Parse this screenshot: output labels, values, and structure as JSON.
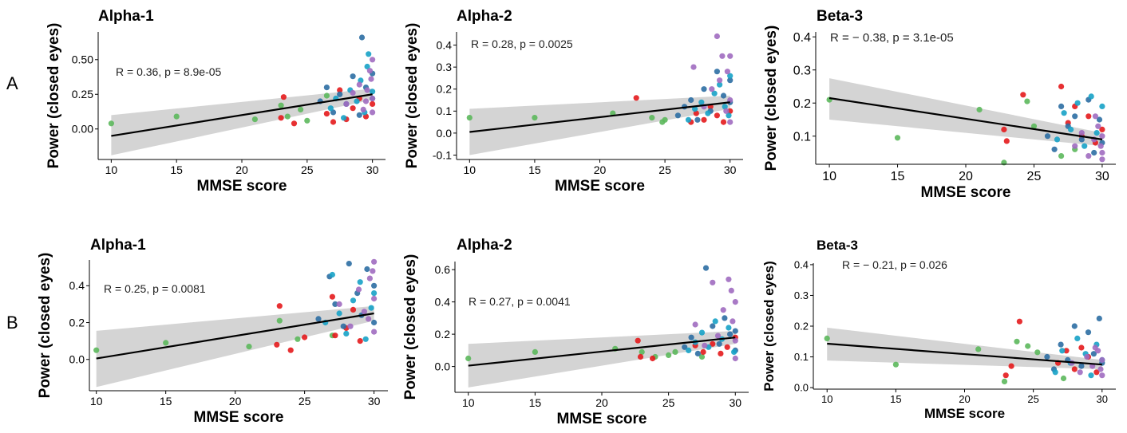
{
  "row_labels": [
    "A",
    "B"
  ],
  "colors": {
    "green": "#5cb85c",
    "red": "#e41a1c",
    "dark_blue": "#2c6ea3",
    "cyan": "#17a2c7",
    "purple": "#a06cc0",
    "band": "#cccccc",
    "line": "#000000"
  },
  "chart_data": [
    {
      "type": "scatter",
      "row": "A",
      "title": "Alpha-1",
      "xlabel": "MMSE score",
      "ylabel": "Power (closed eyes)",
      "xlim": [
        9,
        31
      ],
      "ylim": [
        -0.22,
        0.7
      ],
      "xticks": [
        "10",
        "15",
        "20",
        "25",
        "30"
      ],
      "yticks": [
        "0.00",
        "0.25",
        "0.50"
      ],
      "annotation_R": "R = 0.36, ",
      "annotation_p": "p = 8.9e-05",
      "fit": {
        "x": [
          10,
          30
        ],
        "y": [
          -0.05,
          0.25
        ]
      },
      "band_lower": [
        -0.19,
        0.21
      ],
      "band_upper": [
        0.1,
        0.29
      ],
      "series": [
        {
          "color": "green",
          "x": [
            10,
            15,
            21,
            23,
            23.5,
            24.5,
            25,
            26.5
          ],
          "y": [
            0.04,
            0.09,
            0.07,
            0.17,
            0.09,
            0.14,
            0.06,
            0.24
          ]
        },
        {
          "color": "red",
          "x": [
            23,
            23.2,
            24,
            26.5,
            27,
            27.5,
            28,
            28.5,
            29,
            29.5,
            30
          ],
          "y": [
            0.08,
            0.23,
            0.04,
            0.11,
            0.05,
            0.28,
            0.07,
            0.15,
            0.22,
            0.09,
            0.18
          ]
        },
        {
          "color": "dark_blue",
          "x": [
            26,
            26.5,
            27,
            27.5,
            28,
            28.5,
            29,
            29.2,
            29.5,
            30,
            30
          ],
          "y": [
            0.2,
            0.3,
            0.12,
            0.25,
            0.18,
            0.38,
            0.1,
            0.66,
            0.3,
            0.22,
            0.4
          ]
        },
        {
          "color": "cyan",
          "x": [
            26.8,
            27.2,
            27.8,
            28.3,
            28.8,
            29.1,
            29.4,
            29.7,
            30,
            29.6
          ],
          "y": [
            0.15,
            0.22,
            0.08,
            0.28,
            0.2,
            0.35,
            0.12,
            0.54,
            0.27,
            0.45
          ]
        },
        {
          "color": "purple",
          "x": [
            28,
            28.5,
            29,
            29.3,
            29.6,
            29.9,
            30,
            30,
            30,
            29.8,
            29.5
          ],
          "y": [
            0.18,
            0.26,
            0.32,
            0.14,
            0.28,
            0.36,
            0.22,
            0.5,
            0.12,
            0.42,
            0.2
          ]
        }
      ]
    },
    {
      "type": "scatter",
      "row": "A",
      "title": "Alpha-2",
      "xlabel": "MMSE score",
      "ylabel": "Power (closed eyes)",
      "xlim": [
        9,
        31
      ],
      "ylim": [
        -0.12,
        0.46
      ],
      "xticks": [
        "10",
        "15",
        "20",
        "25",
        "30"
      ],
      "yticks": [
        "-0.1",
        "0.0",
        "0.1",
        "0.2",
        "0.3",
        "0.4"
      ],
      "annotation_R": "R = 0.28, ",
      "annotation_p": "p = 0.0025",
      "fit": {
        "x": [
          10,
          30
        ],
        "y": [
          0.005,
          0.14
        ]
      },
      "band_lower": [
        -0.1,
        0.11
      ],
      "band_upper": [
        0.11,
        0.17
      ],
      "series": [
        {
          "color": "green",
          "x": [
            10,
            15,
            21,
            24,
            24.8,
            25
          ],
          "y": [
            0.07,
            0.07,
            0.09,
            0.07,
            0.05,
            0.06
          ]
        },
        {
          "color": "red",
          "x": [
            22.8,
            27,
            27.4,
            28,
            28.5,
            29,
            29.5,
            30
          ],
          "y": [
            0.16,
            0.05,
            0.09,
            0.06,
            0.12,
            0.08,
            0.05,
            0.1
          ]
        },
        {
          "color": "dark_blue",
          "x": [
            26,
            26.5,
            27,
            27.5,
            28,
            28.5,
            29,
            29.5,
            30,
            30
          ],
          "y": [
            0.08,
            0.12,
            0.15,
            0.06,
            0.2,
            0.1,
            0.28,
            0.17,
            0.24,
            0.14
          ]
        },
        {
          "color": "cyan",
          "x": [
            26.8,
            27.3,
            27.8,
            28.3,
            28.8,
            29.2,
            29.6,
            30,
            29.9
          ],
          "y": [
            0.06,
            0.11,
            0.14,
            0.09,
            0.18,
            0.22,
            0.12,
            0.26,
            0.08
          ]
        },
        {
          "color": "purple",
          "x": [
            27.2,
            28,
            28.6,
            29,
            29.4,
            29.8,
            30,
            30,
            30,
            29.7,
            29.2
          ],
          "y": [
            0.3,
            0.12,
            0.2,
            0.44,
            0.35,
            0.28,
            0.15,
            0.35,
            0.05,
            0.1,
            0.24
          ]
        }
      ]
    },
    {
      "type": "scatter",
      "row": "A",
      "title": "Beta-3",
      "xlabel": "MMSE score",
      "ylabel": "Power (closed eyes)",
      "xlim": [
        9,
        31
      ],
      "ylim": [
        0.015,
        0.415
      ],
      "xticks": [
        "10",
        "15",
        "20",
        "25",
        "30"
      ],
      "yticks": [
        "0.1",
        "0.2",
        "0.3",
        "0.4"
      ],
      "annotation_R": "R = − 0.38, ",
      "annotation_p": "p = 3.1e-05",
      "fit": {
        "x": [
          10,
          30
        ],
        "y": [
          0.215,
          0.09
        ]
      },
      "band_lower": [
        0.15,
        0.07
      ],
      "band_upper": [
        0.275,
        0.11
      ],
      "series": [
        {
          "color": "green",
          "x": [
            10,
            15,
            21,
            22.8,
            24.5,
            25,
            27,
            28
          ],
          "y": [
            0.21,
            0.095,
            0.18,
            0.02,
            0.205,
            0.13,
            0.04,
            0.06
          ]
        },
        {
          "color": "red",
          "x": [
            22.8,
            23,
            24.2,
            27,
            27.5,
            28,
            28.5,
            29,
            29.5,
            30
          ],
          "y": [
            0.12,
            0.085,
            0.225,
            0.25,
            0.14,
            0.19,
            0.1,
            0.16,
            0.08,
            0.12
          ]
        },
        {
          "color": "dark_blue",
          "x": [
            26,
            26.5,
            27,
            27.5,
            28,
            28.5,
            29,
            29.4,
            29.8,
            30
          ],
          "y": [
            0.1,
            0.06,
            0.19,
            0.13,
            0.16,
            0.09,
            0.21,
            0.05,
            0.15,
            0.08
          ]
        },
        {
          "color": "cyan",
          "x": [
            26.7,
            27.2,
            27.7,
            28.2,
            28.7,
            29.2,
            29.6,
            30
          ],
          "y": [
            0.09,
            0.17,
            0.12,
            0.2,
            0.07,
            0.22,
            0.11,
            0.19
          ]
        },
        {
          "color": "purple",
          "x": [
            28,
            28.5,
            29,
            29.4,
            29.7,
            30,
            30,
            30,
            29.9,
            29.5
          ],
          "y": [
            0.07,
            0.11,
            0.04,
            0.09,
            0.13,
            0.05,
            0.1,
            0.03,
            0.07,
            0.16
          ]
        }
      ]
    },
    {
      "type": "scatter",
      "row": "B",
      "title": "Alpha-1",
      "xlabel": "MMSE score",
      "ylabel": "Power (closed eyes)",
      "xlim": [
        9.5,
        31
      ],
      "ylim": [
        -0.17,
        0.54
      ],
      "xticks": [
        "10",
        "15",
        "20",
        "25",
        "30"
      ],
      "yticks": [
        "0.0",
        "0.2",
        "0.4"
      ],
      "annotation_R": "R = 0.25, ",
      "annotation_p": "p = 0.0081",
      "fit": {
        "x": [
          10,
          30
        ],
        "y": [
          0.005,
          0.25
        ]
      },
      "band_lower": [
        -0.15,
        0.21
      ],
      "band_upper": [
        0.155,
        0.29
      ],
      "series": [
        {
          "color": "green",
          "x": [
            10,
            15,
            21,
            23.2,
            24.5,
            27
          ],
          "y": [
            0.05,
            0.09,
            0.07,
            0.21,
            0.11,
            0.13
          ]
        },
        {
          "color": "red",
          "x": [
            23,
            23.2,
            24,
            25,
            27,
            27.2,
            28,
            28.5,
            29
          ],
          "y": [
            0.08,
            0.29,
            0.05,
            0.12,
            0.34,
            0.13,
            0.17,
            0.27,
            0.1
          ]
        },
        {
          "color": "dark_blue",
          "x": [
            26,
            26.8,
            27.2,
            27.8,
            28.2,
            28.8,
            29.1,
            29.5,
            30,
            30
          ],
          "y": [
            0.22,
            0.45,
            0.3,
            0.18,
            0.52,
            0.36,
            0.24,
            0.49,
            0.2,
            0.4
          ]
        },
        {
          "color": "cyan",
          "x": [
            26.5,
            27,
            27.5,
            28,
            28.5,
            29,
            29.4,
            29.8,
            30
          ],
          "y": [
            0.2,
            0.46,
            0.25,
            0.14,
            0.32,
            0.42,
            0.11,
            0.28,
            0.36
          ]
        },
        {
          "color": "purple",
          "x": [
            27.5,
            28.3,
            28.9,
            29.3,
            29.7,
            30,
            30,
            30,
            29.9,
            29.6
          ],
          "y": [
            0.3,
            0.18,
            0.38,
            0.26,
            0.44,
            0.53,
            0.15,
            0.33,
            0.48,
            0.22
          ]
        }
      ]
    },
    {
      "type": "scatter",
      "row": "B",
      "title": "Alpha-2",
      "xlabel": "MMSE score",
      "ylabel": "Power (closed eyes)",
      "xlim": [
        9,
        31
      ],
      "ylim": [
        -0.16,
        0.65
      ],
      "xticks": [
        "10",
        "15",
        "20",
        "25",
        "30"
      ],
      "yticks": [
        "0.0",
        "0.2",
        "0.4",
        "0.6"
      ],
      "annotation_R": "R = 0.27, ",
      "annotation_p": "p = 0.0041",
      "fit": {
        "x": [
          10,
          30
        ],
        "y": [
          0.005,
          0.18
        ]
      },
      "band_lower": [
        -0.13,
        0.14
      ],
      "band_upper": [
        0.14,
        0.22
      ],
      "series": [
        {
          "color": "green",
          "x": [
            10,
            15,
            21,
            23,
            24,
            25,
            25.5,
            27.5
          ],
          "y": [
            0.05,
            0.09,
            0.11,
            0.09,
            0.06,
            0.07,
            0.09,
            0.06
          ]
        },
        {
          "color": "red",
          "x": [
            22.7,
            22.9,
            23.8,
            27,
            27.6,
            28.3,
            28.9,
            29.4,
            30
          ],
          "y": [
            0.16,
            0.06,
            0.05,
            0.13,
            0.09,
            0.14,
            0.08,
            0.12,
            0.18
          ]
        },
        {
          "color": "dark_blue",
          "x": [
            26.2,
            26.7,
            27.2,
            27.8,
            28.3,
            28.8,
            29.2,
            29.6,
            30,
            30
          ],
          "y": [
            0.12,
            0.18,
            0.08,
            0.61,
            0.25,
            0.14,
            0.3,
            0.2,
            0.1,
            0.22
          ]
        },
        {
          "color": "cyan",
          "x": [
            26.5,
            27,
            27.5,
            28,
            28.5,
            29,
            29.5,
            29.9
          ],
          "y": [
            0.1,
            0.15,
            0.21,
            0.12,
            0.28,
            0.17,
            0.24,
            0.09
          ]
        },
        {
          "color": "purple",
          "x": [
            27,
            27.7,
            28.3,
            28.7,
            29.1,
            29.5,
            29.8,
            30,
            30,
            30,
            29.7
          ],
          "y": [
            0.26,
            0.13,
            0.52,
            0.19,
            0.35,
            0.54,
            0.28,
            0.16,
            0.4,
            0.05,
            0.47
          ]
        }
      ]
    },
    {
      "type": "scatter",
      "row": "B",
      "title": "Beta-3",
      "xlabel": "MMSE score",
      "ylabel": "Power (closed eyes)",
      "xlim": [
        9,
        31
      ],
      "ylim": [
        -0.005,
        0.405
      ],
      "xticks": [
        "10",
        "15",
        "20",
        "25",
        "30"
      ],
      "yticks": [
        "0.0",
        "0.1",
        "0.2",
        "0.3",
        "0.4"
      ],
      "annotation_R": "R = − 0.21, ",
      "annotation_p": "p = 0.026",
      "fit": {
        "x": [
          10,
          30
        ],
        "y": [
          0.143,
          0.075
        ]
      },
      "band_lower": [
        0.088,
        0.06
      ],
      "band_upper": [
        0.195,
        0.09
      ],
      "series": [
        {
          "color": "green",
          "x": [
            10,
            15,
            21,
            22.9,
            23.8,
            24.6,
            25.3,
            27.2
          ],
          "y": [
            0.16,
            0.075,
            0.125,
            0.02,
            0.15,
            0.135,
            0.115,
            0.03
          ]
        },
        {
          "color": "red",
          "x": [
            23,
            23.4,
            24,
            26.8,
            27.4,
            28,
            28.5,
            29,
            29.6
          ],
          "y": [
            0.04,
            0.07,
            0.215,
            0.08,
            0.12,
            0.06,
            0.13,
            0.1,
            0.05
          ]
        },
        {
          "color": "dark_blue",
          "x": [
            26,
            26.5,
            27,
            27.5,
            28,
            28.5,
            29,
            29.4,
            29.8,
            30
          ],
          "y": [
            0.1,
            0.06,
            0.14,
            0.09,
            0.2,
            0.07,
            0.18,
            0.11,
            0.225,
            0.08
          ]
        },
        {
          "color": "cyan",
          "x": [
            26.6,
            27.1,
            27.7,
            28.2,
            28.8,
            29.2,
            29.6,
            30
          ],
          "y": [
            0.05,
            0.12,
            0.08,
            0.16,
            0.11,
            0.04,
            0.14,
            0.09
          ]
        },
        {
          "color": "purple",
          "x": [
            27.8,
            28.4,
            28.9,
            29.3,
            29.7,
            30,
            30,
            29.9,
            29.5
          ],
          "y": [
            0.08,
            0.05,
            0.1,
            0.07,
            0.12,
            0.04,
            0.09,
            0.06,
            0.13
          ]
        }
      ]
    }
  ]
}
